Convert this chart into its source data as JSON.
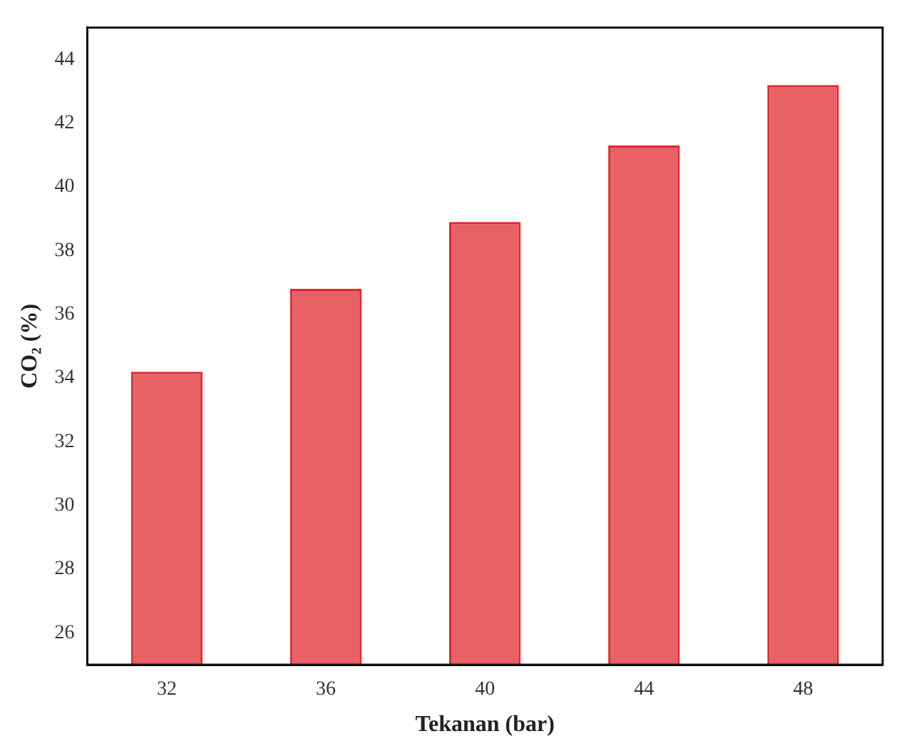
{
  "chart_data": {
    "type": "bar",
    "xlabel": "Tekanan (bar)",
    "ylabel": "CO₂ (%)",
    "categories": [
      "32",
      "36",
      "40",
      "44",
      "48"
    ],
    "values": [
      34.2,
      36.8,
      38.9,
      41.3,
      43.2
    ],
    "color": "#e0282d",
    "ylim": [
      25,
      45
    ],
    "yticks": [
      26,
      28,
      30,
      32,
      34,
      36,
      38,
      40,
      42,
      44
    ],
    "grid": false,
    "legend": false
  }
}
